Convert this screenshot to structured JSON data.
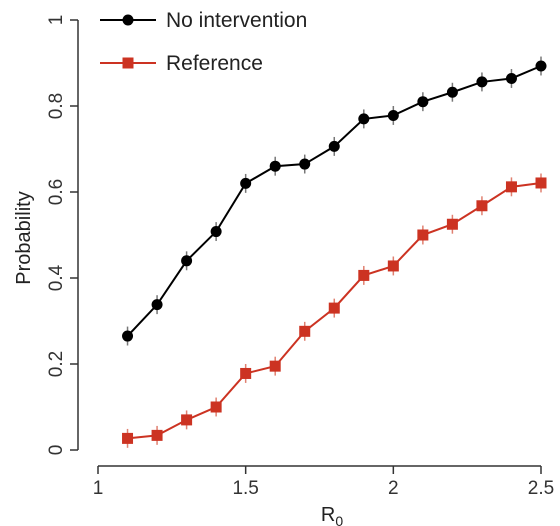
{
  "chart_data": {
    "type": "line",
    "title": "",
    "xlabel": "R",
    "xlabel_subscript": "0",
    "ylabel": "Probability",
    "xlim": [
      1,
      2.5
    ],
    "ylim": [
      0,
      1
    ],
    "x_ticks": [
      1,
      1.5,
      2,
      2.5
    ],
    "x_tick_labels": [
      "1",
      "1.5",
      "2",
      "2.5"
    ],
    "y_ticks": [
      0,
      0.2,
      0.4,
      0.6,
      0.8,
      1
    ],
    "y_tick_labels": [
      "0",
      "0.2",
      "0.4",
      "0.6",
      "0.8",
      "1"
    ],
    "grid": false,
    "legend_position": "top-left",
    "x": [
      1.1,
      1.2,
      1.3,
      1.4,
      1.5,
      1.6,
      1.7,
      1.8,
      1.9,
      2.0,
      2.1,
      2.2,
      2.3,
      2.4,
      2.5
    ],
    "series": [
      {
        "name": "No intervention",
        "color": "#000000",
        "marker": "circle",
        "values": [
          0.265,
          0.338,
          0.44,
          0.508,
          0.62,
          0.66,
          0.665,
          0.706,
          0.77,
          0.778,
          0.81,
          0.832,
          0.856,
          0.864,
          0.893
        ],
        "error": 0.022
      },
      {
        "name": "Reference",
        "color": "#cc3322",
        "marker": "square",
        "values": [
          0.027,
          0.034,
          0.07,
          0.1,
          0.178,
          0.195,
          0.276,
          0.33,
          0.406,
          0.428,
          0.5,
          0.525,
          0.568,
          0.612,
          0.621
        ],
        "error": 0.022
      }
    ]
  }
}
